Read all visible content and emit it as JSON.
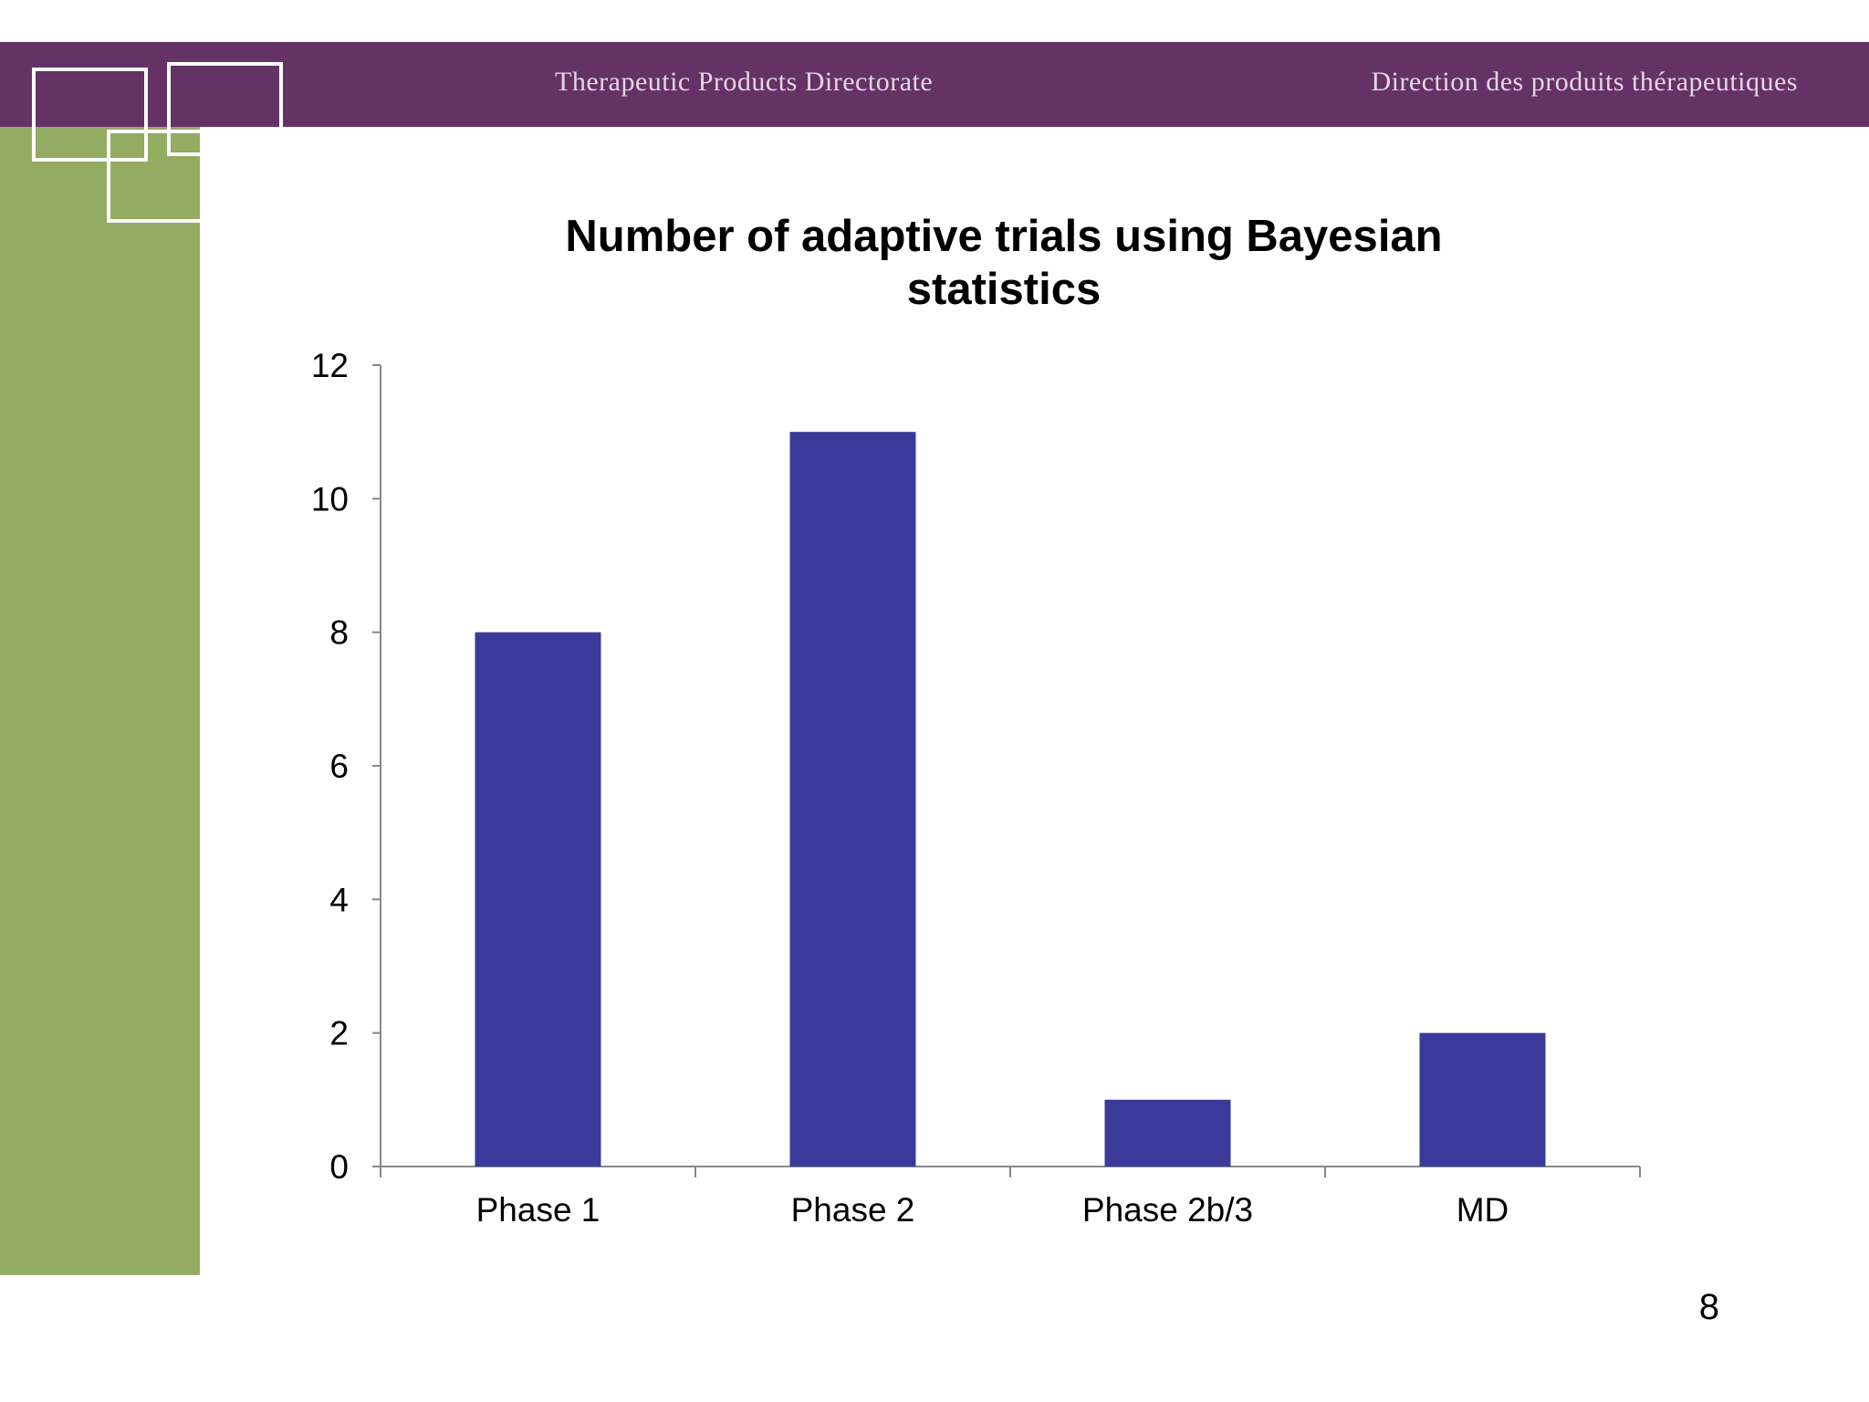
{
  "header": {
    "left_text": "Therapeutic Products Directorate",
    "right_text": "Direction des produits thérapeutiques",
    "bar_color": "#643264",
    "side_color": "#94ab62"
  },
  "page_number": "8",
  "chart_data": {
    "type": "bar",
    "title_lines": [
      "Number of adaptive trials using Bayesian",
      "statistics"
    ],
    "categories": [
      "Phase 1",
      "Phase 2",
      "Phase 2b/3",
      "MD"
    ],
    "values": [
      8,
      11,
      1,
      2
    ],
    "ylim": [
      0,
      12
    ],
    "yticks": [
      0,
      2,
      4,
      6,
      8,
      10,
      12
    ],
    "xlabel": "",
    "ylabel": "",
    "grid": false,
    "bar_color": "#3a3a9b"
  }
}
